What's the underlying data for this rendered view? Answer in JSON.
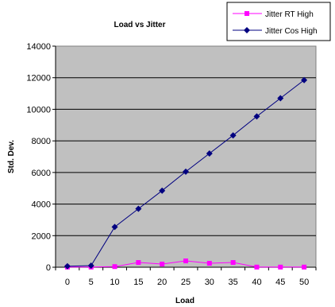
{
  "chart_data": {
    "type": "line",
    "title": "Load vs Jitter",
    "xlabel": "Load",
    "ylabel": "Std. Dev.",
    "x": [
      0,
      5,
      10,
      15,
      20,
      25,
      30,
      35,
      40,
      45,
      50
    ],
    "ylim": [
      0,
      14000
    ],
    "yticks": [
      0,
      2000,
      4000,
      6000,
      8000,
      10000,
      12000,
      14000
    ],
    "grid": true,
    "legend_position": "top-right",
    "plot_background": "#c0c0c0",
    "series": [
      {
        "name": "Jitter RT High",
        "color": "#ff00ff",
        "marker": "square",
        "values": [
          10,
          10,
          40,
          300,
          200,
          400,
          250,
          300,
          10,
          10,
          10
        ]
      },
      {
        "name": "Jitter Cos High",
        "color": "#000080",
        "marker": "diamond",
        "values": [
          60,
          100,
          2550,
          3700,
          4850,
          6050,
          7200,
          8350,
          9550,
          10700,
          11850
        ]
      }
    ]
  }
}
